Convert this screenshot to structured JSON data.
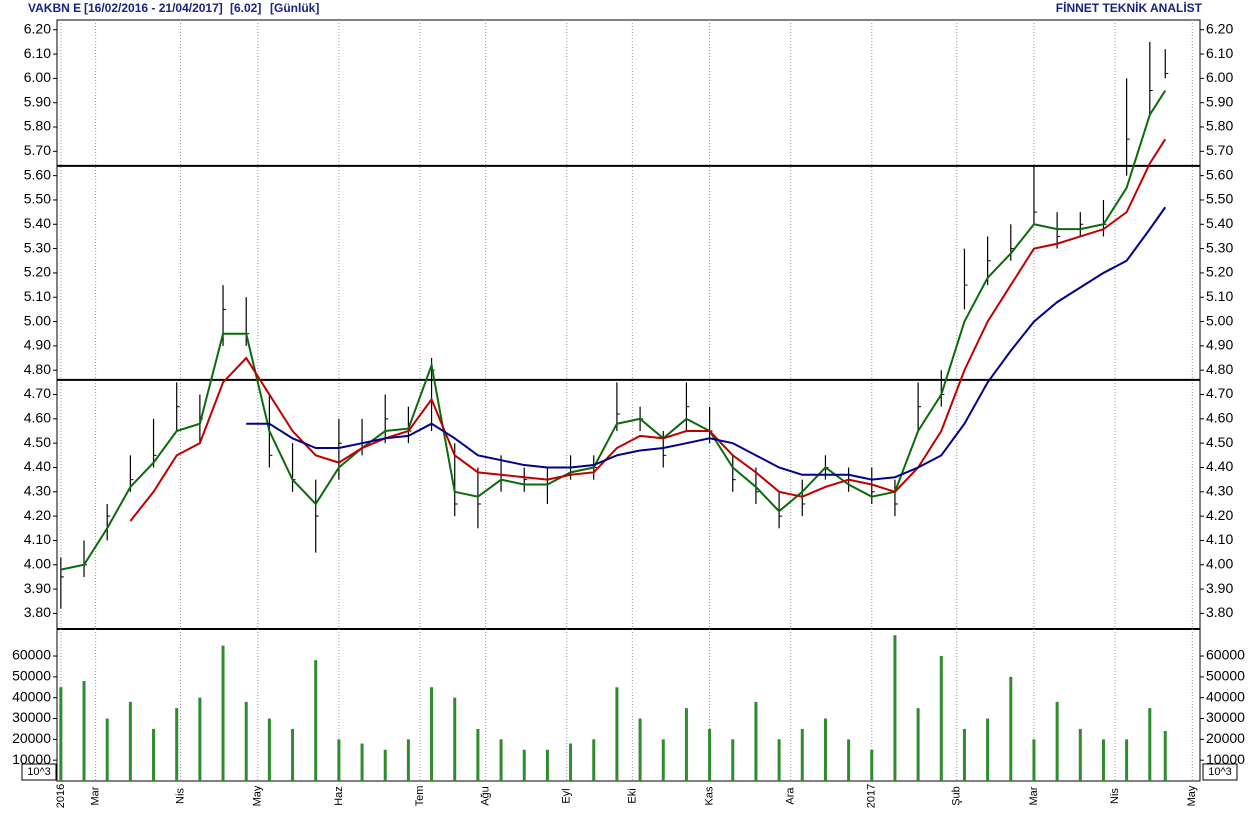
{
  "chart_data": {
    "type": "hlc",
    "symbol": "VAKBN E",
    "range": "[16/02/2016 - 21/04/2017]",
    "last": "[6.02]",
    "period": "[Günlük]",
    "brand": "FİNNET TEKNİK ANALİST",
    "bar_color": "#000000",
    "x": [
      0,
      6,
      12,
      18,
      24,
      30,
      36,
      42,
      48,
      54,
      60,
      66,
      72,
      78,
      84,
      90,
      96,
      102,
      108,
      114,
      120,
      126,
      132,
      138,
      144,
      150,
      156,
      162,
      168,
      174,
      180,
      186,
      192,
      198,
      204,
      210,
      216,
      222,
      228,
      234,
      240,
      246,
      252,
      258,
      264,
      270,
      276,
      282,
      286
    ],
    "high": [
      4.03,
      4.1,
      4.25,
      4.45,
      4.6,
      4.75,
      4.7,
      5.15,
      5.1,
      4.7,
      4.5,
      4.35,
      4.6,
      4.6,
      4.7,
      4.65,
      4.85,
      4.5,
      4.4,
      4.45,
      4.4,
      4.4,
      4.45,
      4.45,
      4.75,
      4.65,
      4.55,
      4.75,
      4.65,
      4.45,
      4.4,
      4.3,
      4.35,
      4.45,
      4.4,
      4.4,
      4.35,
      4.75,
      4.8,
      5.3,
      5.35,
      5.4,
      5.64,
      5.45,
      5.45,
      5.5,
      6.0,
      6.15,
      6.12
    ],
    "low": [
      3.82,
      3.95,
      4.1,
      4.3,
      4.4,
      4.55,
      4.5,
      4.9,
      4.9,
      4.4,
      4.3,
      4.05,
      4.35,
      4.45,
      4.5,
      4.5,
      4.55,
      4.2,
      4.15,
      4.3,
      4.3,
      4.25,
      4.35,
      4.35,
      4.55,
      4.55,
      4.4,
      4.55,
      4.5,
      4.3,
      4.25,
      4.15,
      4.2,
      4.35,
      4.3,
      4.25,
      4.2,
      4.55,
      4.65,
      5.05,
      5.15,
      5.25,
      5.4,
      5.3,
      5.35,
      5.35,
      5.6,
      5.85,
      6.0
    ],
    "close": [
      3.95,
      4.0,
      4.2,
      4.35,
      4.45,
      4.65,
      4.6,
      5.05,
      4.95,
      4.45,
      4.35,
      4.2,
      4.5,
      4.5,
      4.6,
      4.55,
      4.8,
      4.25,
      4.25,
      4.35,
      4.35,
      4.35,
      4.38,
      4.4,
      4.62,
      4.6,
      4.45,
      4.65,
      4.55,
      4.35,
      4.3,
      4.2,
      4.25,
      4.4,
      4.35,
      4.3,
      4.25,
      4.65,
      4.7,
      5.15,
      5.25,
      5.3,
      5.45,
      5.35,
      5.4,
      5.4,
      5.75,
      5.95,
      6.02
    ],
    "series": [
      {
        "color": "#0b6b0b",
        "values": [
          3.98,
          4.0,
          4.15,
          4.32,
          4.42,
          4.55,
          4.58,
          4.95,
          4.95,
          4.55,
          4.35,
          4.25,
          4.4,
          4.48,
          4.55,
          4.56,
          4.82,
          4.3,
          4.28,
          4.35,
          4.33,
          4.33,
          4.38,
          4.4,
          4.58,
          4.6,
          4.52,
          4.6,
          4.55,
          4.4,
          4.32,
          4.22,
          4.3,
          4.4,
          4.33,
          4.28,
          4.3,
          4.55,
          4.7,
          5.0,
          5.18,
          5.28,
          5.4,
          5.38,
          5.38,
          5.4,
          5.55,
          5.85,
          5.95
        ]
      },
      {
        "color": "#c00000",
        "values": [
          null,
          null,
          null,
          4.18,
          4.3,
          4.45,
          4.5,
          4.75,
          4.85,
          4.7,
          4.55,
          4.45,
          4.42,
          4.48,
          4.52,
          4.55,
          4.68,
          4.45,
          4.38,
          4.37,
          4.36,
          4.35,
          4.37,
          4.38,
          4.48,
          4.53,
          4.52,
          4.55,
          4.55,
          4.45,
          4.38,
          4.3,
          4.28,
          4.32,
          4.35,
          4.33,
          4.3,
          4.4,
          4.55,
          4.8,
          5.0,
          5.15,
          5.3,
          5.32,
          5.35,
          5.38,
          5.45,
          5.65,
          5.75
        ]
      },
      {
        "color": "#00008b",
        "values": [
          null,
          null,
          null,
          null,
          null,
          null,
          null,
          null,
          4.58,
          4.58,
          4.52,
          4.48,
          4.48,
          4.5,
          4.52,
          4.53,
          4.58,
          4.52,
          4.45,
          4.43,
          4.41,
          4.4,
          4.4,
          4.41,
          4.45,
          4.47,
          4.48,
          4.5,
          4.52,
          4.5,
          4.45,
          4.4,
          4.37,
          4.37,
          4.37,
          4.35,
          4.36,
          4.4,
          4.45,
          4.58,
          4.75,
          4.88,
          5.0,
          5.08,
          5.14,
          5.2,
          5.25,
          5.38,
          5.47
        ]
      }
    ],
    "hlines": [
      5.64,
      4.76
    ],
    "xlim": [
      -1,
      295
    ],
    "xticks": [
      {
        "value": 0,
        "label": "2016"
      },
      {
        "value": 9,
        "label": "Mar"
      },
      {
        "value": 31,
        "label": "Nis"
      },
      {
        "value": 51,
        "label": "May"
      },
      {
        "value": 72,
        "label": "Haz"
      },
      {
        "value": 93,
        "label": "Tem"
      },
      {
        "value": 110,
        "label": "Ağu"
      },
      {
        "value": 131,
        "label": "Eyl"
      },
      {
        "value": 148,
        "label": "Eki"
      },
      {
        "value": 168,
        "label": "Kas"
      },
      {
        "value": 189,
        "label": "Ara"
      },
      {
        "value": 210,
        "label": "2017"
      },
      {
        "value": 232,
        "label": "Şub"
      },
      {
        "value": 252,
        "label": "Mar"
      },
      {
        "value": 273,
        "label": "Nis"
      },
      {
        "value": 293,
        "label": "May"
      }
    ],
    "ylim": [
      3.74,
      6.24
    ],
    "yticks": [
      {
        "value": 3.8,
        "label": "3.80"
      },
      {
        "value": 3.9,
        "label": "3.90"
      },
      {
        "value": 4.0,
        "label": "4.00"
      },
      {
        "value": 4.1,
        "label": "4.10"
      },
      {
        "value": 4.2,
        "label": "4.20"
      },
      {
        "value": 4.3,
        "label": "4.30"
      },
      {
        "value": 4.4,
        "label": "4.40"
      },
      {
        "value": 4.5,
        "label": "4.50"
      },
      {
        "value": 4.6,
        "label": "4.60"
      },
      {
        "value": 4.7,
        "label": "4.70"
      },
      {
        "value": 4.8,
        "label": "4.80"
      },
      {
        "value": 4.9,
        "label": "4.90"
      },
      {
        "value": 5.0,
        "label": "5.00"
      },
      {
        "value": 5.1,
        "label": "5.10"
      },
      {
        "value": 5.2,
        "label": "5.20"
      },
      {
        "value": 5.3,
        "label": "5.30"
      },
      {
        "value": 5.4,
        "label": "5.40"
      },
      {
        "value": 5.5,
        "label": "5.50"
      },
      {
        "value": 5.6,
        "label": "5.60"
      },
      {
        "value": 5.7,
        "label": "5.70"
      },
      {
        "value": 5.8,
        "label": "5.80"
      },
      {
        "value": 5.9,
        "label": "5.90"
      },
      {
        "value": 6.0,
        "label": "6.00"
      },
      {
        "value": 6.1,
        "label": "6.10"
      },
      {
        "value": 6.2,
        "label": "6.20"
      }
    ],
    "volume": {
      "color": "#2e8b2e",
      "unit": "10^3",
      "values": [
        45000,
        48000,
        30000,
        38000,
        25000,
        35000,
        40000,
        65000,
        38000,
        30000,
        25000,
        58000,
        20000,
        18000,
        15000,
        20000,
        45000,
        40000,
        25000,
        20000,
        15000,
        15000,
        18000,
        20000,
        45000,
        30000,
        20000,
        35000,
        25000,
        20000,
        38000,
        20000,
        25000,
        30000,
        20000,
        15000,
        70000,
        35000,
        60000,
        25000,
        30000,
        50000,
        20000,
        38000,
        25000,
        20000,
        20000,
        35000,
        24000
      ],
      "ylim": [
        0,
        72500
      ],
      "yticks": [
        10000,
        20000,
        30000,
        40000,
        50000,
        60000
      ]
    }
  }
}
